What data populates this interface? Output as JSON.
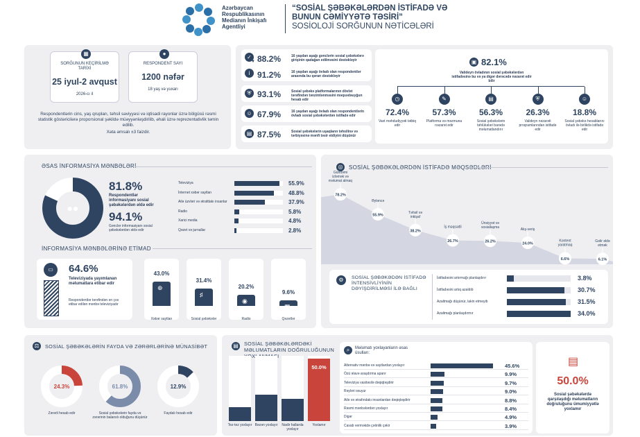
{
  "header": {
    "logo_lines": [
      "Azərbaycan",
      "Respublikasının",
      "Medianın İnkişafı",
      "Agentliyi"
    ],
    "title_lines": [
      "“SOSİAL ŞƏBƏKƏLƏRDƏN İSTİFADƏ VƏ",
      "BUNUN CƏMİYYƏTƏ TƏSİRİ”",
      "SOSİOLOJİ SORĞUNUN NƏTİCƏLƏRİ"
    ]
  },
  "survey": {
    "date_label": "SORĞUNUN KEÇİRİLMƏ TARİXİ",
    "date_value": "25 iyul-2 avqust",
    "date_sub": "2026-cı il",
    "resp_label": "RESPONDENT SAYI",
    "resp_value": "1200 nəfər",
    "resp_sub": "18 yaş və yuxarı",
    "note": "Respondentlərin cins, yaş qrupları, təhsil səviyyəsi və iqtisadi rayonlar üzrə bölgüsü rəsmi statistik göstəricilərə proporsional şəkildə müəyyənləşdirilib, əhali üzrə reprezentativlik təmin edilib.",
    "error": "Xəta əmsalı ±3 faizdir."
  },
  "top_stats": [
    {
      "value": "88.2%",
      "text": "16 yaşdan aşağı gənclərin sosial şəbəkələrə girişinin qadağan edilməsini dəstəkləyir"
    },
    {
      "value": "91.2%",
      "text": "16 yaşdan aşağı övladı olan respondentlər arasında bu qərarı dəstəkləyir"
    },
    {
      "value": "93.1%",
      "text": "Sosial şəbəkə platformalarının dövlət tərəfindən tənzimlənməsini məqsədəuyğun hesab edir"
    },
    {
      "value": "67.9%",
      "text": "16 yaşdan aşağı övladı olan respondentlərin övladı sosial şəbəkələrdən istifadə edir"
    },
    {
      "value": "87.5%",
      "text": "Sosial şəbəkələrin uşaqların təhsilinə və tərbiyəsinə mənfi təsir etdiyini düşünür"
    }
  ],
  "parents": {
    "value": "82.1%",
    "text": "Valideyn övladının sosial şəbəkələrdən istifadəsinə bu və ya digər dərəcədə nəzarət edir bilir",
    "items": [
      {
        "value": "72.4%",
        "text": "Vaxt məhdudiyyəti tətbiq edir"
      },
      {
        "value": "57.3%",
        "text": "Platforma və məzmuna nəzarət edir"
      },
      {
        "value": "56.3%",
        "text": "Sosial şəbəkələrin təhlükələri barədə məlumatlandırır"
      },
      {
        "value": "26.3%",
        "text": "Valideyn nəzarəti proqramlarından istifadə edir"
      },
      {
        "value": "18.8%",
        "text": "Sosial şəbəkə hesablarını övladı ilə birlikdə istifadə edir"
      }
    ]
  },
  "sources": {
    "title": "ƏSAS İNFORMASİYA MƏNBƏLƏRİ",
    "main_value": "81.8%",
    "main_text": "Respondentlər informasiyanı sosial şəbəkələrdən əldə edir",
    "young_value": "94.1%",
    "young_text": "Gənclər informasiyanı sosial şəbəkələrdən əldə edir",
    "bars": [
      {
        "label": "Televiziya",
        "value": "55.9%"
      },
      {
        "label": "İnternet xəbər saytları",
        "value": "48.8%"
      },
      {
        "label": "Ailə üzvləri və ətrafdakı insanlar",
        "value": "37.9%"
      },
      {
        "label": "Radio",
        "value": "5.8%"
      },
      {
        "label": "Xarici media",
        "value": "4.8%"
      },
      {
        "label": "Qəzet və jurnallar",
        "value": "2.8%"
      }
    ]
  },
  "trust": {
    "title": "İNFORMASİYA MƏNBƏLƏRİNƏ ETİMAD",
    "tv_value": "64.6%",
    "tv_text": "Televiziyada yayımlanan məlumatlara etibar edir",
    "tv_sub": "Respondentlər tərəfindən ən çox etibar edilən mənbə televiziyadır",
    "items": [
      {
        "value": "43.0%",
        "label": "Xəbər saytları"
      },
      {
        "value": "31.4%",
        "label": "Sosial şəbəkələr"
      },
      {
        "value": "20.2%",
        "label": "Radio"
      },
      {
        "value": "9.6%",
        "label": "Qəzetlər"
      }
    ]
  },
  "purposes": {
    "title": "SOSİAL ŞƏBƏKƏLƏRDƏN İSTİFADƏ MƏQSƏDLƏRİ",
    "items": [
      {
        "label": "Gündəmi izləmək və məlumat almaq",
        "value": "78.2%"
      },
      {
        "label": "Əyləncə",
        "value": "55.9%"
      },
      {
        "label": "Təhsil və inkişaf",
        "value": "38.2%"
      },
      {
        "label": "İş məqsədli",
        "value": "26.7%"
      },
      {
        "label": "Ünsiyyət və sosiallaşma",
        "value": "26.2%"
      },
      {
        "label": "Alış-veriş",
        "value": "24.0%"
      },
      {
        "label": "Kontent yaratmaq",
        "value": "6.6%"
      },
      {
        "label": "Gəlir əldə etmək",
        "value": "6.1%"
      }
    ]
  },
  "intensity": {
    "title": "SOSİAL ŞƏBƏKƏDƏN İSTİFADƏ İNTENSİVLİYİNİN DƏYİŞDİRİLMƏSİ İLƏ BAĞLI",
    "items": [
      {
        "label": "İstifadəsini artırmağı planlaşdırır",
        "value": "3.8%"
      },
      {
        "label": "İstifadəsini artıq azaldıb",
        "value": "30.7%"
      },
      {
        "label": "Azaltmağı düşünür, lakin etmeyib",
        "value": "31.5%"
      },
      {
        "label": "Azaltmağı planlaşdırmır",
        "value": "34.0%"
      }
    ]
  },
  "harm": {
    "title": "SOSİAL ŞƏBƏKƏLƏRİN FAYDA VƏ ZƏRƏRLƏRİNƏ MÜNASİBƏT",
    "items": [
      {
        "value": "24.3%",
        "label": "Zərərli hesab edir",
        "color": "#c9443a"
      },
      {
        "value": "61.8%",
        "label": "Sosial şəbəkələrin fayda və zərərinin balanslı olduğunu düşünür",
        "color": "#7b8cab"
      },
      {
        "value": "12.9%",
        "label": "Faydalı hesab edir",
        "color": "#2e4460"
      }
    ]
  },
  "verify": {
    "title": "SOSİAL ŞƏBƏKƏLƏRDƏKİ MƏLUMATLARIN DOĞRULUĞUNUN YOXLANMASI",
    "bars": [
      {
        "label": "Tez-tez yoxlayır",
        "value": "10.8%",
        "color": "#2e4460"
      },
      {
        "label": "Bəzən yoxlayır",
        "value": "20.8%",
        "color": "#2e4460"
      },
      {
        "label": "Nadir hallarda yoxlayır",
        "value": "17.8%",
        "color": "#2e4460"
      },
      {
        "label": "Yoxlamır",
        "value": "50.0%",
        "color": "#c9443a"
      }
    ],
    "methods_title": "Məlumatı yoxlayanların əsas üsulları:",
    "methods": [
      {
        "label": "Alternativ mənbə və saytlardan yoxlayır",
        "value": "45.6%"
      },
      {
        "label": "Özü əlavə araşdırma aparır",
        "value": "9.9%"
      },
      {
        "label": "Televiziya vasitəsilə dəqiqləşdirir",
        "value": "9.7%"
      },
      {
        "label": "Rəyləri oxuyur",
        "value": "9.0%"
      },
      {
        "label": "Ailə və ətrafındakı insanlardan dəqiqləşdirir",
        "value": "8.8%"
      },
      {
        "label": "Rəsmi mənbələrdən yoxlayır",
        "value": "8.4%"
      },
      {
        "label": "Digər",
        "value": "4.9%"
      },
      {
        "label": "Cavab verməkdə çətinlik çəkir",
        "value": "3.9%"
      }
    ],
    "regulate_value": "50.0%",
    "regulate_text": "Sosial şəbəkələrdə qarşılaşdığı məlumatların doğruluğunu ümumiyyətlə yoxlamır"
  },
  "colors": {
    "navy": "#2e4460",
    "red": "#c9443a",
    "panel": "#efeff2"
  }
}
